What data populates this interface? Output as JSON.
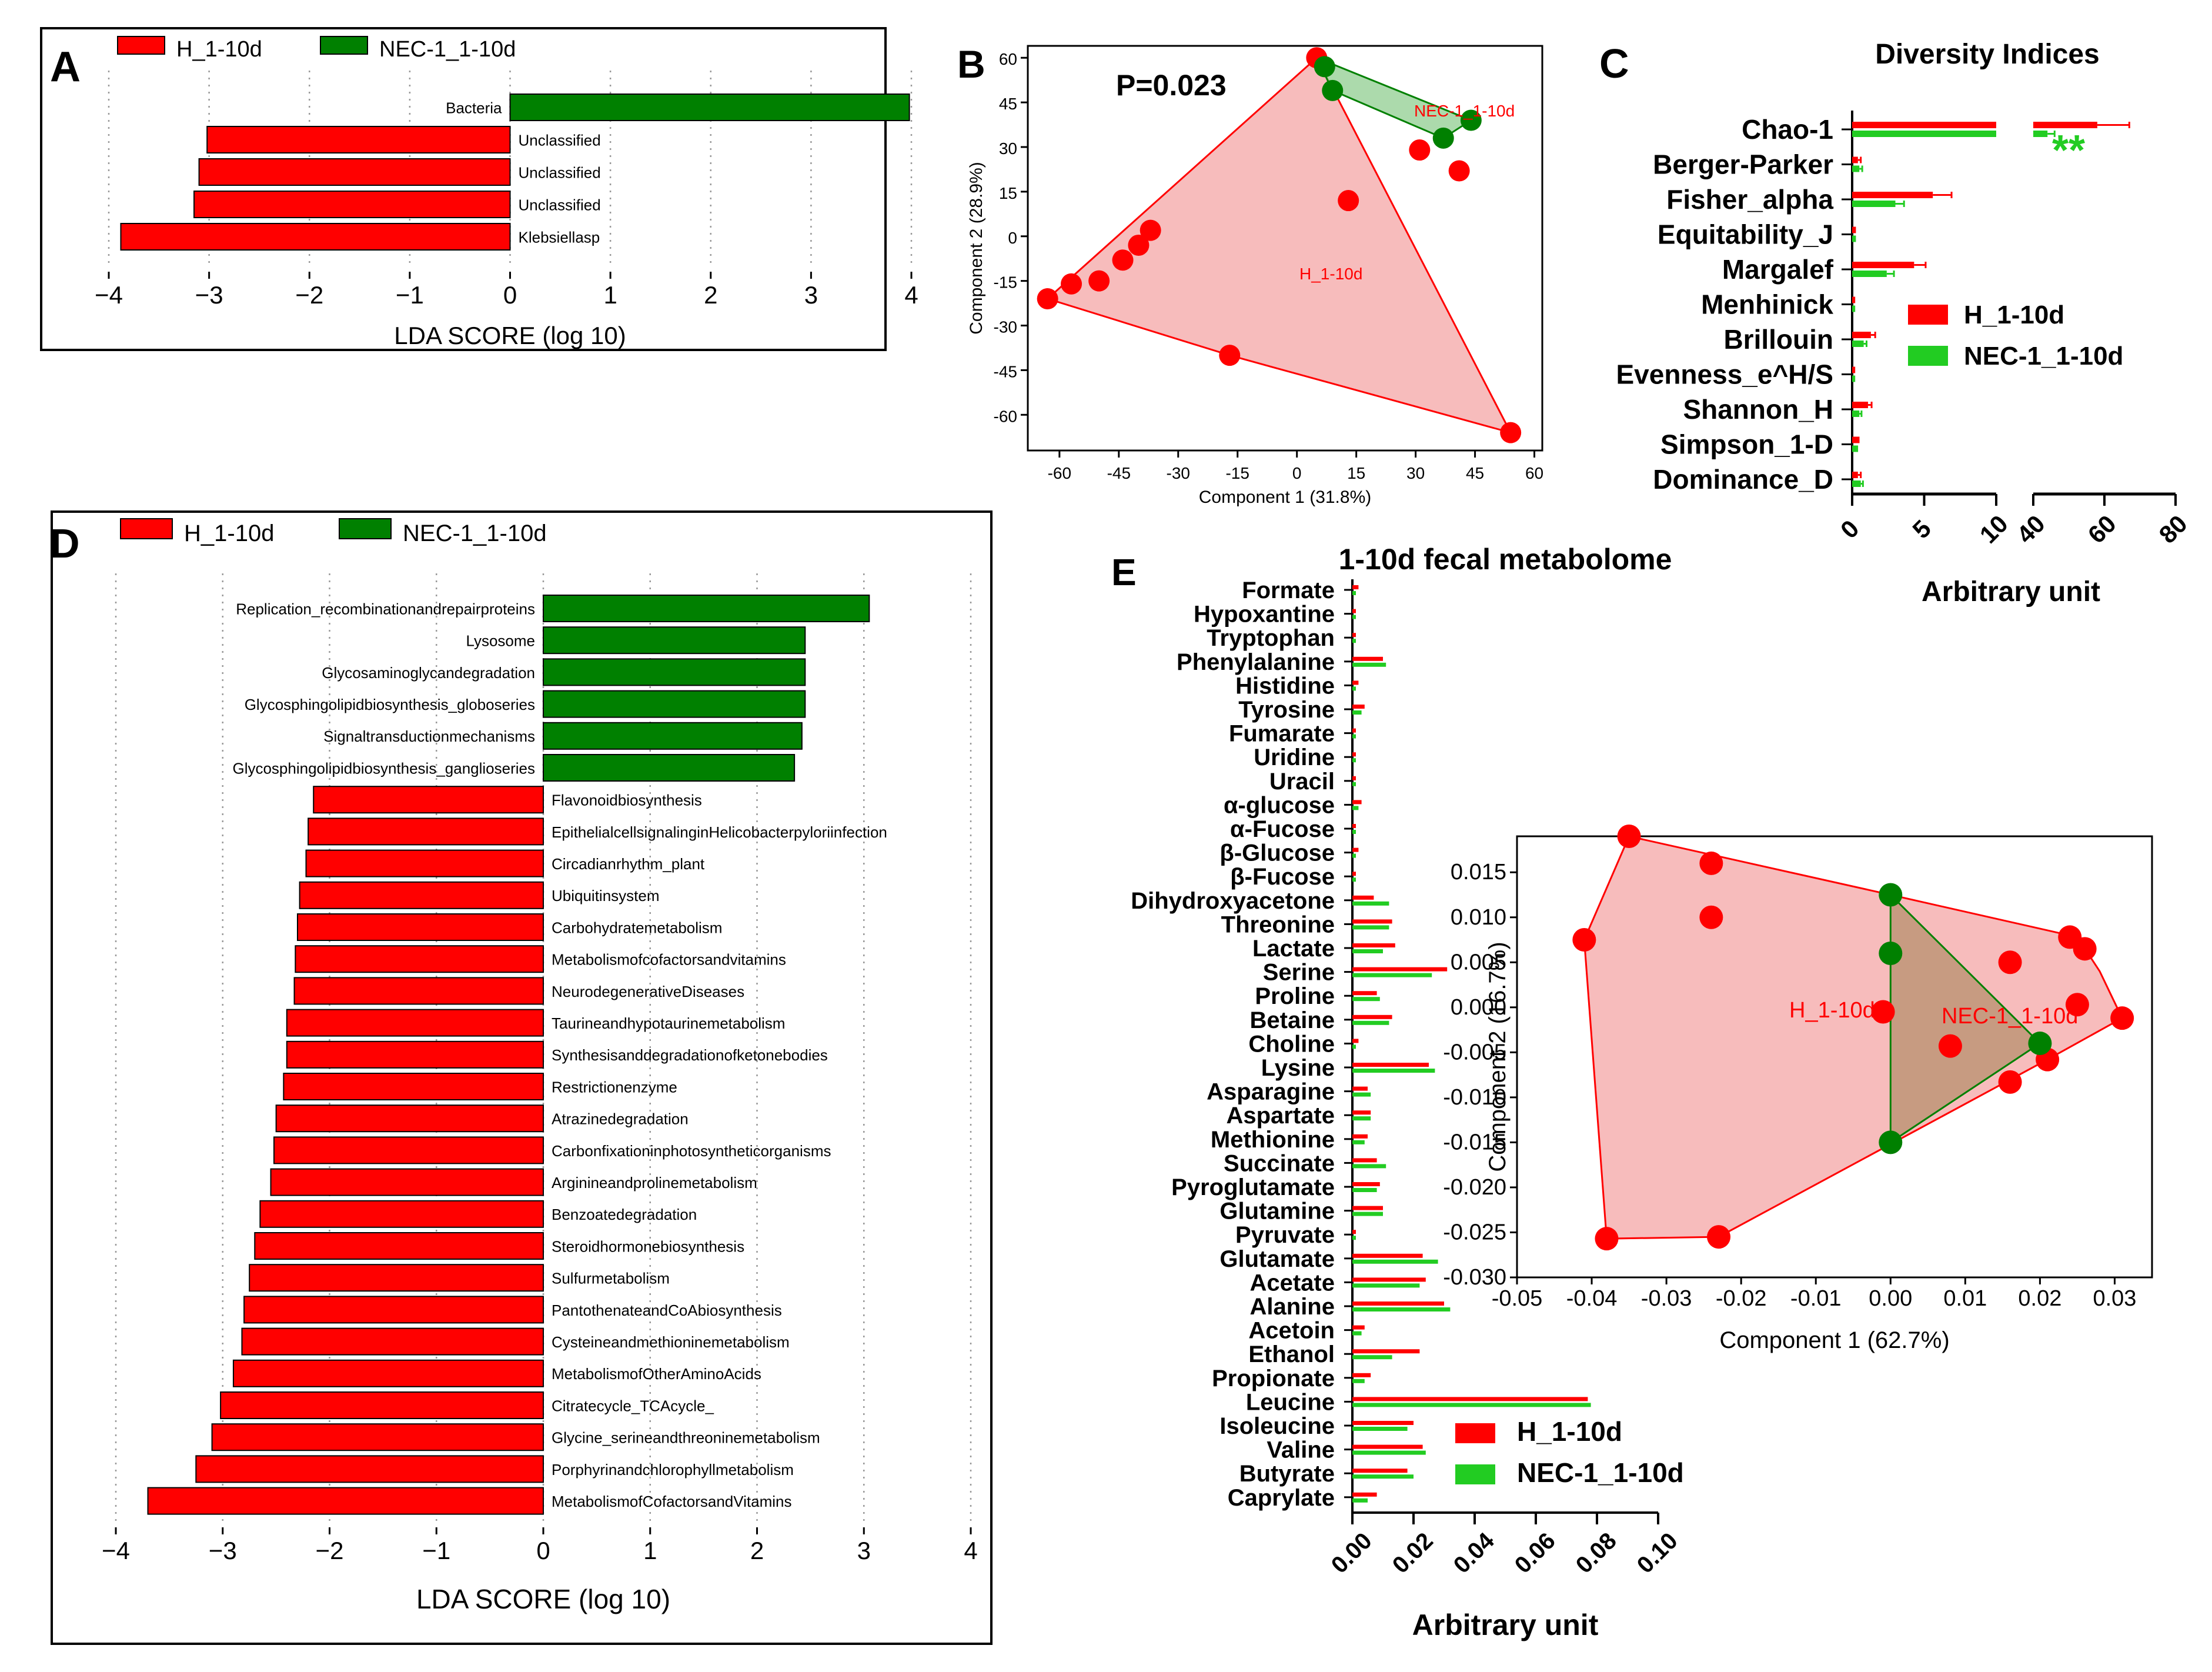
{
  "colors": {
    "h": "#ff0000",
    "nec_dark": "#008000",
    "nec_bright": "#22cc22",
    "hull_h": "#f4a6a6",
    "hull_nec": "#9ed49e",
    "overlap": "#a08050",
    "edge": "#000000"
  },
  "panels": {
    "A": "A",
    "B": "B",
    "C": "C",
    "D": "D",
    "E": "E"
  },
  "chart_data": [
    {
      "id": "A",
      "type": "bar",
      "orientation": "horizontal",
      "legend": [
        "H_1-10d",
        "NEC-1_1-10d"
      ],
      "categories": [
        "Bacteria",
        "Unclassified",
        "Unclassified",
        "Unclassified",
        "Klebsiellasp"
      ],
      "values": [
        3.98,
        -3.02,
        -3.1,
        -3.15,
        -3.88
      ],
      "groups": [
        "NEC-1_1-10d",
        "H_1-10d",
        "H_1-10d",
        "H_1-10d",
        "H_1-10d"
      ],
      "xlim": [
        -4,
        4
      ],
      "xticks": [
        -4,
        -3,
        -2,
        -1,
        0,
        1,
        2,
        3,
        4
      ],
      "xticklabels": [
        "−4",
        "−3",
        "−2",
        "−1",
        "0",
        "1",
        "2",
        "3",
        "4"
      ],
      "xlabel": "LDA SCORE (log 10)",
      "grid": true
    },
    {
      "id": "B",
      "type": "scatter",
      "annotation": "P=0.023",
      "xlabel": "Component 1 (31.8%)",
      "ylabel": "Component 2 (28.9%)",
      "xlim": [
        -68,
        62
      ],
      "ylim": [
        -72,
        64
      ],
      "xticks": [
        -60,
        -45,
        -30,
        -15,
        0,
        15,
        30,
        45,
        60
      ],
      "yticks": [
        60,
        45,
        30,
        15,
        0,
        -15,
        -30,
        -45,
        -60
      ],
      "series": [
        {
          "name": "H_1-10d",
          "label": "H_1-10d",
          "x": [
            5,
            31,
            41,
            13,
            -37,
            -40,
            -44,
            -50,
            -57,
            -63,
            -17,
            54
          ],
          "y": [
            60,
            29,
            22,
            12,
            2,
            -3,
            -8,
            -15,
            -16,
            -21,
            -40,
            -66
          ],
          "hull_x": [
            5,
            54,
            -17,
            -63
          ],
          "hull_y": [
            60,
            -66,
            -40,
            -21
          ]
        },
        {
          "name": "NEC-1_1-10d",
          "label": "NEC-1_1-10d",
          "x": [
            9,
            37,
            44,
            7
          ],
          "y": [
            49,
            33,
            39,
            57
          ],
          "hull_x": [
            5,
            44,
            37,
            9
          ],
          "hull_y": [
            60,
            39,
            33,
            49
          ]
        }
      ]
    },
    {
      "id": "C",
      "type": "bar",
      "orientation": "horizontal",
      "title": "Diversity Indices",
      "categories": [
        "Chao-1",
        "Berger-Parker",
        "Fisher_alpha",
        "Equitability_J",
        "Margalef",
        "Menhinick",
        "Brillouin",
        "Evenness_e^H/S",
        "Shannon_H",
        "Simpson_1-D",
        "Dominance_D"
      ],
      "series": [
        {
          "name": "H_1-10d",
          "values": [
            58,
            0.4,
            5.6,
            0.1,
            4.3,
            0.1,
            1.3,
            0.1,
            1.1,
            0.4,
            0.4
          ],
          "errors": [
            9,
            0.2,
            1.3,
            0.1,
            0.8,
            0.05,
            0.3,
            0.05,
            0.25,
            0.05,
            0.2
          ]
        },
        {
          "name": "NEC-1_1-10d",
          "values": [
            44,
            0.5,
            3.0,
            0.1,
            2.4,
            0.1,
            0.8,
            0.1,
            0.5,
            0.3,
            0.6
          ],
          "errors": [
            2,
            0.2,
            0.6,
            0.1,
            0.5,
            0.05,
            0.2,
            0.05,
            0.15,
            0.05,
            0.15
          ]
        }
      ],
      "significance": "**",
      "axis_break": [
        10,
        40
      ],
      "xticks": [
        0,
        5,
        10,
        40,
        60,
        80
      ],
      "xlabel": "Arbitrary unit"
    },
    {
      "id": "D",
      "type": "bar",
      "orientation": "horizontal",
      "legend": [
        "H_1-10d",
        "NEC-1_1-10d"
      ],
      "categories": [
        "Replication_recombinationandrepairproteins",
        "Lysosome",
        "Glycosaminoglycandegradation",
        "Glycosphingolipidbiosynthesis_globoseries",
        "Signaltransductionmechanisms",
        "Glycosphingolipidbiosynthesis_ganglioseries",
        "Flavonoidbiosynthesis",
        "EpithelialcellsignalinginHelicobacterpyloriinfection",
        "Circadianrhythm_plant",
        "Ubiquitinsystem",
        "Carbohydratemetabolism",
        "Metabolismofcofactorsandvitamins",
        "NeurodegenerativeDiseases",
        "Taurineandhypotaurinemetabolism",
        "Synthesisanddegradationofketonebodies",
        "Restrictionenzyme",
        "Atrazinedegradation",
        "Carbonfixationinphotosyntheticorganisms",
        "Arginineandprolinemetabolism",
        "Benzoatedegradation",
        "Steroidhormonebiosynthesis",
        "Sulfurmetabolism",
        "PantothenateandCoAbiosynthesis",
        "Cysteineandmethioninemetabolism",
        "MetabolismofOtherAminoAcids",
        "Citratecycle_TCAcycle_",
        "Glycine_serineandthreoninemetabolism",
        "Porphyrinandchlorophyllmetabolism",
        "MetabolismofCofactorsandVitamins"
      ],
      "values": [
        3.05,
        2.45,
        2.45,
        2.45,
        2.42,
        2.35,
        -2.15,
        -2.2,
        -2.22,
        -2.28,
        -2.3,
        -2.32,
        -2.33,
        -2.4,
        -2.4,
        -2.43,
        -2.5,
        -2.52,
        -2.55,
        -2.65,
        -2.7,
        -2.75,
        -2.8,
        -2.82,
        -2.9,
        -3.02,
        -3.1,
        -3.25,
        -3.7
      ],
      "xlim": [
        -4,
        4
      ],
      "xticks": [
        -4,
        -3,
        -2,
        -1,
        0,
        1,
        2,
        3,
        4
      ],
      "xticklabels": [
        "−4",
        "−3",
        "−2",
        "−1",
        "0",
        "1",
        "2",
        "3",
        "4"
      ],
      "xlabel": "LDA SCORE (log 10)",
      "grid": true
    },
    {
      "id": "E",
      "type": "bar",
      "orientation": "horizontal",
      "title": "1-10d fecal metabolome",
      "categories": [
        "Formate",
        "Hypoxantine",
        "Tryptophan",
        "Phenylalanine",
        "Histidine",
        "Tyrosine",
        "Fumarate",
        "Uridine",
        "Uracil",
        "α-glucose",
        "α-Fucose",
        "β-Glucose",
        "β-Fucose",
        "Dihydroxyacetone",
        "Threonine",
        "Lactate",
        "Serine",
        "Proline",
        "Betaine",
        "Choline",
        "Lysine",
        "Asparagine",
        "Aspartate",
        "Methionine",
        "Succinate",
        "Pyroglutamate",
        "Glutamine",
        "Pyruvate",
        "Glutamate",
        "Acetate",
        "Alanine",
        "Acetoin",
        "Ethanol",
        "Propionate",
        "Leucine",
        "Isoleucine",
        "Valine",
        "Butyrate",
        "Caprylate"
      ],
      "series": [
        {
          "name": "H_1-10d",
          "values": [
            0.002,
            0.001,
            0.001,
            0.01,
            0.002,
            0.004,
            0.001,
            0.001,
            0.001,
            0.003,
            0.001,
            0.002,
            0.001,
            0.007,
            0.013,
            0.014,
            0.031,
            0.008,
            0.013,
            0.002,
            0.025,
            0.005,
            0.006,
            0.005,
            0.008,
            0.009,
            0.01,
            0.001,
            0.023,
            0.024,
            0.03,
            0.004,
            0.022,
            0.006,
            0.077,
            0.02,
            0.023,
            0.018,
            0.008
          ]
        },
        {
          "name": "NEC-1_1-10d",
          "values": [
            0.001,
            0.001,
            0.001,
            0.011,
            0.001,
            0.003,
            0.001,
            0.001,
            0.001,
            0.002,
            0.001,
            0.001,
            0.001,
            0.012,
            0.012,
            0.01,
            0.026,
            0.009,
            0.012,
            0.001,
            0.027,
            0.006,
            0.006,
            0.004,
            0.011,
            0.008,
            0.01,
            0.001,
            0.028,
            0.022,
            0.032,
            0.003,
            0.013,
            0.004,
            0.078,
            0.018,
            0.024,
            0.02,
            0.005
          ]
        }
      ],
      "xlim": [
        0,
        0.1
      ],
      "xticks": [
        0,
        0.02,
        0.04,
        0.06,
        0.08,
        0.1
      ],
      "xticklabels": [
        "0.00",
        "0.02",
        "0.04",
        "0.06",
        "0.08",
        "0.10"
      ],
      "xlabel": "Arbitrary unit",
      "legend": [
        "H_1-10d",
        "NEC-1_1-10d"
      ]
    },
    {
      "id": "E_inset",
      "type": "scatter",
      "xlabel": "Component 1 (62.7%)",
      "ylabel": "Component 2 (16.7%)",
      "xlim": [
        -0.05,
        0.035
      ],
      "ylim": [
        -0.03,
        0.019
      ],
      "xticks": [
        -0.05,
        -0.04,
        -0.03,
        -0.02,
        -0.01,
        0,
        0.01,
        0.02,
        0.03
      ],
      "xticklabels": [
        "-0.05",
        "-0.04",
        "-0.03",
        "-0.02",
        "-0.01",
        "0.00",
        "0.01",
        "0.02",
        "0.03"
      ],
      "yticks": [
        0.015,
        0.01,
        0.005,
        0,
        -0.005,
        -0.01,
        -0.015,
        -0.02,
        -0.025,
        -0.03
      ],
      "yticklabels": [
        "0.015",
        "0.010",
        "0.005",
        "0.000",
        "-0.005",
        "-0.010",
        "-0.015",
        "-0.020",
        "-0.025",
        "-0.030"
      ],
      "series": [
        {
          "name": "H_1-10d",
          "label": "H_1-10d",
          "x": [
            -0.035,
            -0.024,
            -0.024,
            -0.041,
            -0.001,
            0.008,
            0.016,
            0.016,
            0.021,
            0.024,
            0.025,
            0.026,
            0.031,
            -0.038,
            -0.023
          ],
          "y": [
            0.019,
            0.016,
            0.01,
            0.0075,
            -0.0005,
            -0.0043,
            0.005,
            -0.0083,
            -0.0058,
            0.0078,
            0.0003,
            0.0065,
            -0.0012,
            -0.0257,
            -0.0255
          ],
          "hull_x": [
            -0.035,
            0.0,
            0.025,
            0.028,
            0.031,
            0.021,
            -0.023,
            -0.038,
            -0.041
          ],
          "hull_y": [
            0.019,
            0.0125,
            0.0078,
            0.004,
            -0.0012,
            -0.0058,
            -0.0255,
            -0.0257,
            0.0075
          ]
        },
        {
          "name": "NEC-1_1-10d",
          "label": "NEC-1_1-10d",
          "x": [
            0.0,
            0.0,
            0.02,
            0.0
          ],
          "y": [
            0.0125,
            0.006,
            -0.004,
            -0.015
          ],
          "hull_x": [
            0.0,
            0.02,
            0.0
          ],
          "hull_y": [
            0.0125,
            -0.004,
            -0.015
          ]
        }
      ]
    }
  ]
}
